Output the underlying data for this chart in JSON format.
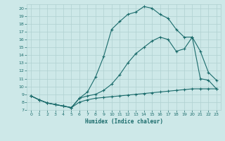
{
  "xlabel": "Humidex (Indice chaleur)",
  "xlim": [
    -0.5,
    23.5
  ],
  "ylim": [
    7,
    20.5
  ],
  "xticks": [
    0,
    1,
    2,
    3,
    4,
    5,
    6,
    7,
    8,
    9,
    10,
    11,
    12,
    13,
    14,
    15,
    16,
    17,
    18,
    19,
    20,
    21,
    22,
    23
  ],
  "yticks": [
    7,
    8,
    9,
    10,
    11,
    12,
    13,
    14,
    15,
    16,
    17,
    18,
    19,
    20
  ],
  "bg_color": "#cde8e8",
  "grid_color": "#b0d0d0",
  "line_color": "#1a6b6b",
  "line1_x": [
    0,
    1,
    2,
    3,
    4,
    5,
    6,
    7,
    8,
    9,
    10,
    11,
    12,
    13,
    14,
    15,
    16,
    17,
    18,
    19,
    20,
    21,
    22,
    23
  ],
  "line1_y": [
    8.8,
    8.3,
    7.9,
    7.7,
    7.5,
    7.3,
    8.5,
    9.3,
    11.2,
    13.8,
    17.3,
    18.3,
    19.2,
    19.5,
    20.2,
    20.0,
    19.2,
    18.7,
    17.3,
    16.3,
    16.3,
    11.0,
    10.8,
    9.7
  ],
  "line2_x": [
    0,
    1,
    2,
    3,
    4,
    5,
    6,
    7,
    8,
    9,
    10,
    11,
    12,
    13,
    14,
    15,
    16,
    17,
    18,
    19,
    20,
    21,
    22,
    23
  ],
  "line2_y": [
    8.8,
    8.3,
    7.9,
    7.7,
    7.5,
    7.3,
    8.5,
    8.8,
    9.0,
    9.5,
    10.3,
    11.5,
    13.0,
    14.2,
    15.0,
    15.8,
    16.3,
    16.0,
    14.5,
    14.8,
    16.3,
    14.5,
    11.8,
    10.8
  ],
  "line3_x": [
    0,
    1,
    2,
    3,
    4,
    5,
    6,
    7,
    8,
    9,
    10,
    11,
    12,
    13,
    14,
    15,
    16,
    17,
    18,
    19,
    20,
    21,
    22,
    23
  ],
  "line3_y": [
    8.8,
    8.3,
    7.9,
    7.7,
    7.5,
    7.3,
    8.0,
    8.3,
    8.5,
    8.6,
    8.7,
    8.8,
    8.9,
    9.0,
    9.1,
    9.2,
    9.3,
    9.4,
    9.5,
    9.6,
    9.7,
    9.7,
    9.7,
    9.7
  ]
}
